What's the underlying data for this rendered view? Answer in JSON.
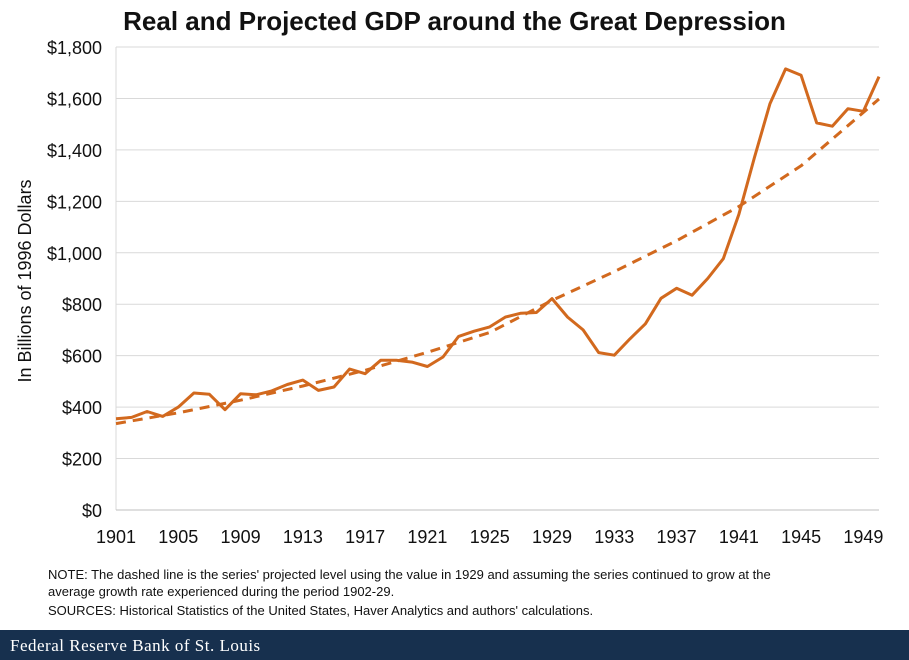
{
  "chart_data": {
    "type": "line",
    "title": "Real and Projected GDP around the Great Depression",
    "ylabel": "In Billions of 1996 Dollars",
    "xlabel": "",
    "ylim": [
      0,
      1800
    ],
    "xlim": [
      1901,
      1950
    ],
    "yticks": [
      0,
      200,
      400,
      600,
      800,
      1000,
      1200,
      1400,
      1600,
      1800
    ],
    "ytick_labels": [
      "$0",
      "$200",
      "$400",
      "$600",
      "$800",
      "$1,000",
      "$1,200",
      "$1,400",
      "$1,600",
      "$1,800"
    ],
    "xticks": [
      1901,
      1905,
      1909,
      1913,
      1917,
      1921,
      1925,
      1929,
      1933,
      1937,
      1941,
      1945,
      1949
    ],
    "xtick_labels": [
      "1901",
      "1905",
      "1909",
      "1913",
      "1917",
      "1921",
      "1925",
      "1929",
      "1933",
      "1937",
      "1941",
      "1945",
      "1949"
    ],
    "grid": "horizontal",
    "color": "#d2691e",
    "series": [
      {
        "name": "Real GDP",
        "style": "solid",
        "x": [
          1901,
          1902,
          1903,
          1904,
          1905,
          1906,
          1907,
          1908,
          1909,
          1910,
          1911,
          1912,
          1913,
          1914,
          1915,
          1916,
          1917,
          1918,
          1919,
          1920,
          1921,
          1922,
          1923,
          1924,
          1925,
          1926,
          1927,
          1928,
          1929,
          1930,
          1931,
          1932,
          1933,
          1934,
          1935,
          1936,
          1937,
          1938,
          1939,
          1940,
          1941,
          1942,
          1943,
          1944,
          1945,
          1946,
          1947,
          1948,
          1949,
          1950
        ],
        "values": [
          355,
          360,
          383,
          364,
          400,
          455,
          450,
          390,
          452,
          448,
          463,
          488,
          505,
          465,
          478,
          548,
          530,
          582,
          582,
          575,
          558,
          595,
          675,
          695,
          712,
          750,
          765,
          768,
          822,
          750,
          700,
          612,
          602,
          665,
          724,
          823,
          862,
          835,
          900,
          977,
          1150,
          1370,
          1580,
          1715,
          1690,
          1505,
          1492,
          1560,
          1550,
          1685
        ]
      },
      {
        "name": "Projected GDP",
        "style": "dashed",
        "x": [
          1901,
          1905,
          1909,
          1913,
          1917,
          1921,
          1925,
          1929,
          1933,
          1937,
          1941,
          1945,
          1950
        ],
        "values": [
          336,
          378,
          427,
          482,
          543,
          613,
          690,
          815,
          927,
          1047,
          1180,
          1338,
          1598
        ]
      }
    ]
  },
  "notes": {
    "note_line1": "NOTE: The dashed line is the series' projected level using the value in 1929 and assuming the series continued to grow at the",
    "note_line2": "average growth  rate experienced during the period 1902-29.",
    "sources": "SOURCES: Historical Statistics of the United States, Haver Analytics and authors' calculations."
  },
  "footer": {
    "label": "Federal Reserve Bank of St. Louis"
  }
}
